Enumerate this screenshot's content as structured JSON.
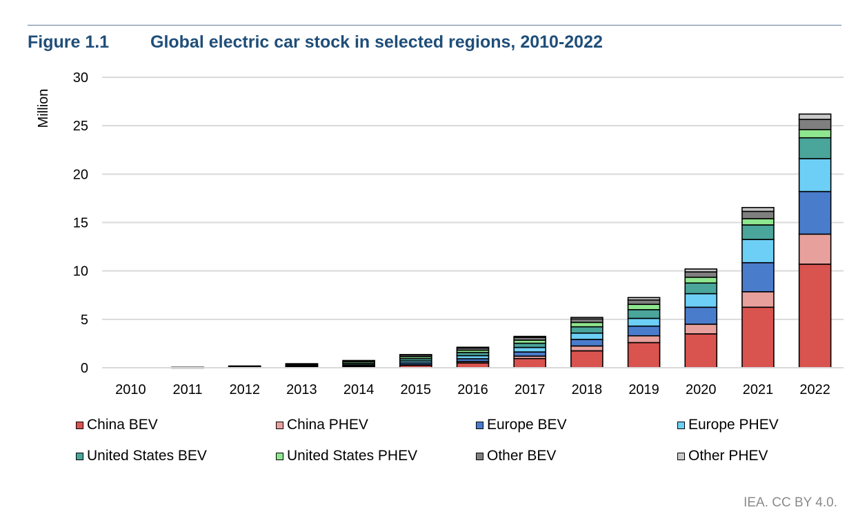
{
  "figure": {
    "label": "Figure 1.1",
    "title": "Global electric car stock in selected regions, 2010-2022"
  },
  "source": "IEA. CC BY 4.0.",
  "chart_data": {
    "type": "bar",
    "stacked": true,
    "title": "Global electric car stock in selected regions, 2010-2022",
    "xlabel": "",
    "ylabel": "Million",
    "ylim": [
      0,
      30
    ],
    "yticks": [
      0,
      5,
      10,
      15,
      20,
      25,
      30
    ],
    "grid": true,
    "legend_position": "bottom",
    "categories": [
      "2010",
      "2011",
      "2012",
      "2013",
      "2014",
      "2015",
      "2016",
      "2017",
      "2018",
      "2019",
      "2020",
      "2021",
      "2022"
    ],
    "series": [
      {
        "name": "China BEV",
        "color": "#d9534f",
        "values": [
          0.0,
          0.01,
          0.02,
          0.03,
          0.08,
          0.25,
          0.5,
          0.95,
          1.75,
          2.6,
          3.5,
          6.25,
          10.7
        ]
      },
      {
        "name": "China PHEV",
        "color": "#e8a09c",
        "values": [
          0.0,
          0.0,
          0.0,
          0.01,
          0.02,
          0.06,
          0.15,
          0.25,
          0.5,
          0.7,
          1.0,
          1.6,
          3.1
        ]
      },
      {
        "name": "Europe BEV",
        "color": "#4a7ccc",
        "values": [
          0.0,
          0.01,
          0.02,
          0.05,
          0.1,
          0.19,
          0.28,
          0.43,
          0.68,
          1.0,
          1.75,
          3.0,
          4.4
        ]
      },
      {
        "name": "Europe PHEV",
        "color": "#6dcff6",
        "values": [
          0.0,
          0.0,
          0.01,
          0.05,
          0.09,
          0.2,
          0.32,
          0.47,
          0.65,
          0.8,
          1.4,
          2.4,
          3.4
        ]
      },
      {
        "name": "United States BEV",
        "color": "#4aa59b",
        "values": [
          0.0,
          0.01,
          0.04,
          0.09,
          0.15,
          0.24,
          0.32,
          0.43,
          0.65,
          0.9,
          1.1,
          1.5,
          2.15
        ]
      },
      {
        "name": "United States PHEV",
        "color": "#8ee68e",
        "values": [
          0.0,
          0.01,
          0.04,
          0.09,
          0.16,
          0.2,
          0.25,
          0.32,
          0.45,
          0.55,
          0.6,
          0.65,
          0.85
        ]
      },
      {
        "name": "Other BEV",
        "color": "#7f7f7f",
        "values": [
          0.0,
          0.01,
          0.04,
          0.08,
          0.12,
          0.17,
          0.22,
          0.29,
          0.36,
          0.45,
          0.55,
          0.75,
          1.05
        ]
      },
      {
        "name": "Other PHEV",
        "color": "#c8c8c8",
        "values": [
          0.0,
          0.0,
          0.01,
          0.02,
          0.03,
          0.05,
          0.08,
          0.1,
          0.16,
          0.25,
          0.3,
          0.4,
          0.55
        ]
      }
    ]
  }
}
